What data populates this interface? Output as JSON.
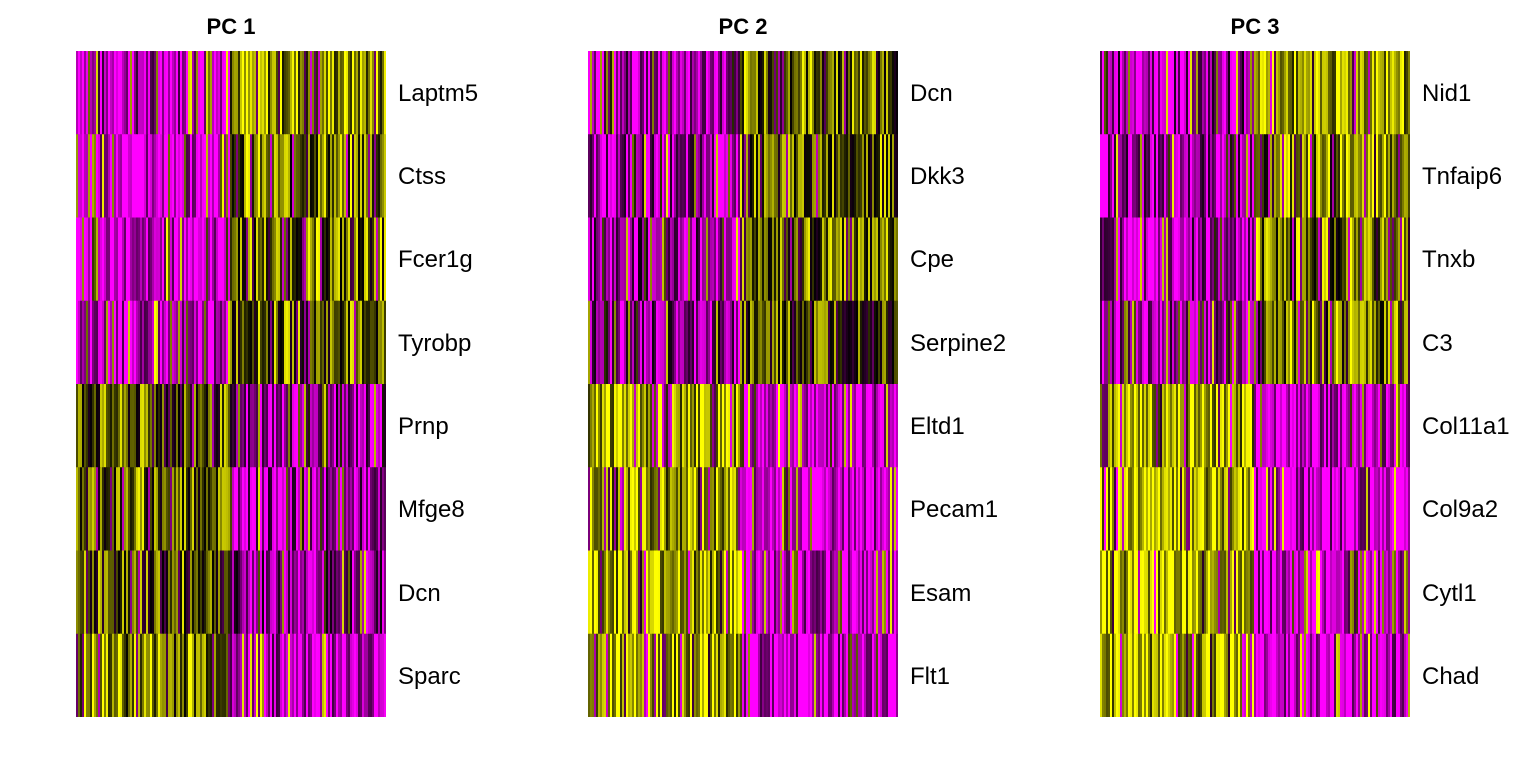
{
  "colors": {
    "low": "#ff00ff",
    "mid": "#000000",
    "high": "#ffff00"
  },
  "chart_data": [
    {
      "type": "heatmap",
      "title": "PC 1",
      "genes": [
        "Laptm5",
        "Ctss",
        "Fcer1g",
        "Tyrobp",
        "Prnp",
        "Mfge8",
        "Dcn",
        "Sparc"
      ],
      "split": 0.5,
      "blocks": [
        {
          "gene": "Laptm5",
          "left": -0.7,
          "right": 0.6
        },
        {
          "gene": "Ctss",
          "left": -0.8,
          "right": 0.5
        },
        {
          "gene": "Fcer1g",
          "left": -0.8,
          "right": 0.45
        },
        {
          "gene": "Tyrobp",
          "left": -0.8,
          "right": 0.4
        },
        {
          "gene": "Prnp",
          "left": 0.35,
          "right": -0.6
        },
        {
          "gene": "Mfge8",
          "left": 0.45,
          "right": -0.65
        },
        {
          "gene": "Dcn",
          "left": 0.35,
          "right": -0.55
        },
        {
          "gene": "Sparc",
          "left": 0.55,
          "right": -0.75
        }
      ]
    },
    {
      "type": "heatmap",
      "title": "PC 2",
      "genes": [
        "Dcn",
        "Dkk3",
        "Cpe",
        "Serpine2",
        "Eltd1",
        "Pecam1",
        "Esam",
        "Flt1"
      ],
      "split": 0.5,
      "blocks": [
        {
          "gene": "Dcn",
          "left": -0.65,
          "right": 0.45
        },
        {
          "gene": "Dkk3",
          "left": -0.65,
          "right": 0.4
        },
        {
          "gene": "Cpe",
          "left": -0.6,
          "right": 0.4
        },
        {
          "gene": "Serpine2",
          "left": -0.6,
          "right": 0.35
        },
        {
          "gene": "Eltd1",
          "left": 0.7,
          "right": -0.8
        },
        {
          "gene": "Pecam1",
          "left": 0.65,
          "right": -0.8
        },
        {
          "gene": "Esam",
          "left": 0.65,
          "right": -0.8
        },
        {
          "gene": "Flt1",
          "left": 0.7,
          "right": -0.8
        }
      ]
    },
    {
      "type": "heatmap",
      "title": "PC 3",
      "genes": [
        "Nid1",
        "Tnfaip6",
        "Tnxb",
        "C3",
        "Col11a1",
        "Col9a2",
        "Cytl1",
        "Chad"
      ],
      "split": 0.5,
      "blocks": [
        {
          "gene": "Nid1",
          "left": -0.6,
          "right": 0.65
        },
        {
          "gene": "Tnfaip6",
          "left": -0.65,
          "right": 0.55
        },
        {
          "gene": "Tnxb",
          "left": -0.65,
          "right": 0.5
        },
        {
          "gene": "C3",
          "left": -0.65,
          "right": 0.55
        },
        {
          "gene": "Col11a1",
          "left": 0.7,
          "right": -0.8
        },
        {
          "gene": "Col9a2",
          "left": 0.75,
          "right": -0.8
        },
        {
          "gene": "Cytl1",
          "left": 0.7,
          "right": -0.8
        },
        {
          "gene": "Chad",
          "left": 0.7,
          "right": -0.8
        }
      ]
    }
  ]
}
